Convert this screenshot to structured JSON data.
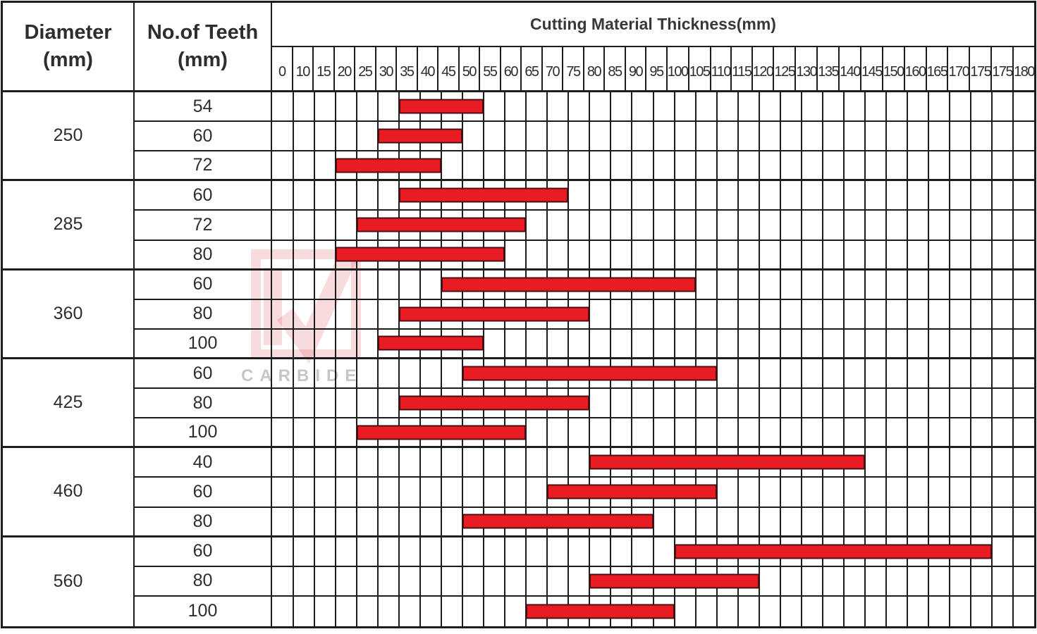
{
  "header": {
    "diameter_title": "Diameter",
    "diameter_unit": "(mm)",
    "teeth_title": "No.of Teeth",
    "teeth_unit": "(mm)",
    "chart_title": "Cutting Material Thickness(mm)",
    "ticks": [
      "0",
      "10",
      "15",
      "20",
      "25",
      "30",
      "35",
      "40",
      "45",
      "50",
      "55",
      "60",
      "65",
      "70",
      "75",
      "80",
      "85",
      "90",
      "95",
      "100",
      "105",
      "110",
      "115",
      "120",
      "125",
      "130",
      "135",
      "140",
      "145",
      "150",
      "160",
      "165",
      "170",
      "175",
      "175",
      "180"
    ]
  },
  "table": {
    "num_grid_columns": 36,
    "groups": [
      {
        "diameter": "250",
        "rows": [
          {
            "teeth": "54",
            "cols": [
              6,
              10
            ],
            "range_mm": [
              35,
              55
            ]
          },
          {
            "teeth": "60",
            "cols": [
              5,
              9
            ],
            "range_mm": [
              30,
              50
            ]
          },
          {
            "teeth": "72",
            "cols": [
              3,
              8
            ],
            "range_mm": [
              20,
              45
            ]
          }
        ]
      },
      {
        "diameter": "285",
        "rows": [
          {
            "teeth": "60",
            "cols": [
              6,
              14
            ],
            "range_mm": [
              35,
              75
            ]
          },
          {
            "teeth": "72",
            "cols": [
              4,
              12
            ],
            "range_mm": [
              25,
              65
            ]
          },
          {
            "teeth": "80",
            "cols": [
              3,
              11
            ],
            "range_mm": [
              20,
              60
            ]
          }
        ]
      },
      {
        "diameter": "360",
        "rows": [
          {
            "teeth": "60",
            "cols": [
              8,
              20
            ],
            "range_mm": [
              45,
              105
            ]
          },
          {
            "teeth": "80",
            "cols": [
              6,
              15
            ],
            "range_mm": [
              35,
              80
            ]
          },
          {
            "teeth": "100",
            "cols": [
              5,
              10
            ],
            "range_mm": [
              30,
              55
            ]
          }
        ]
      },
      {
        "diameter": "425",
        "rows": [
          {
            "teeth": "60",
            "cols": [
              9,
              21
            ],
            "range_mm": [
              50,
              110
            ]
          },
          {
            "teeth": "80",
            "cols": [
              6,
              15
            ],
            "range_mm": [
              35,
              80
            ]
          },
          {
            "teeth": "100",
            "cols": [
              4,
              12
            ],
            "range_mm": [
              25,
              65
            ]
          }
        ]
      },
      {
        "diameter": "460",
        "rows": [
          {
            "teeth": "40",
            "cols": [
              15,
              28
            ],
            "range_mm": [
              80,
              145
            ]
          },
          {
            "teeth": "60",
            "cols": [
              13,
              21
            ],
            "range_mm": [
              70,
              110
            ]
          },
          {
            "teeth": "80",
            "cols": [
              9,
              18
            ],
            "range_mm": [
              50,
              95
            ]
          }
        ]
      },
      {
        "diameter": "560",
        "rows": [
          {
            "teeth": "60",
            "cols": [
              19,
              34
            ],
            "range_mm": [
              100,
              175
            ]
          },
          {
            "teeth": "80",
            "cols": [
              15,
              23
            ],
            "range_mm": [
              80,
              120
            ]
          },
          {
            "teeth": "100",
            "cols": [
              12,
              19
            ],
            "range_mm": [
              65,
              100
            ]
          }
        ]
      }
    ]
  },
  "watermark": {
    "text": "CARBIDE"
  },
  "colors": {
    "bar_fill": "#ea1c23",
    "bar_border": "#4d0e11",
    "grid_line": "#1d1d1d",
    "text": "#2d2d2d",
    "watermark_pink": "rgba(214,55,65,0.18)",
    "watermark_gray": "#c7c7c7"
  },
  "chart_data": {
    "type": "bar",
    "subtype": "horizontal-range",
    "title": "Cutting Material Thickness(mm)",
    "xlabel": "Cutting Material Thickness(mm)",
    "x_tick_labels": [
      0,
      10,
      15,
      20,
      25,
      30,
      35,
      40,
      45,
      50,
      55,
      60,
      65,
      70,
      75,
      80,
      85,
      90,
      95,
      100,
      105,
      110,
      115,
      120,
      125,
      130,
      135,
      140,
      145,
      150,
      160,
      165,
      170,
      175,
      175,
      180
    ],
    "grid": true,
    "legend_position": "none",
    "series": [
      {
        "diameter_mm": 250,
        "teeth": 54,
        "thickness_range_mm": [
          35,
          55
        ]
      },
      {
        "diameter_mm": 250,
        "teeth": 60,
        "thickness_range_mm": [
          30,
          50
        ]
      },
      {
        "diameter_mm": 250,
        "teeth": 72,
        "thickness_range_mm": [
          20,
          45
        ]
      },
      {
        "diameter_mm": 285,
        "teeth": 60,
        "thickness_range_mm": [
          35,
          75
        ]
      },
      {
        "diameter_mm": 285,
        "teeth": 72,
        "thickness_range_mm": [
          25,
          65
        ]
      },
      {
        "diameter_mm": 285,
        "teeth": 80,
        "thickness_range_mm": [
          20,
          60
        ]
      },
      {
        "diameter_mm": 360,
        "teeth": 60,
        "thickness_range_mm": [
          45,
          105
        ]
      },
      {
        "diameter_mm": 360,
        "teeth": 80,
        "thickness_range_mm": [
          35,
          80
        ]
      },
      {
        "diameter_mm": 360,
        "teeth": 100,
        "thickness_range_mm": [
          30,
          55
        ]
      },
      {
        "diameter_mm": 425,
        "teeth": 60,
        "thickness_range_mm": [
          50,
          110
        ]
      },
      {
        "diameter_mm": 425,
        "teeth": 80,
        "thickness_range_mm": [
          35,
          80
        ]
      },
      {
        "diameter_mm": 425,
        "teeth": 100,
        "thickness_range_mm": [
          25,
          65
        ]
      },
      {
        "diameter_mm": 460,
        "teeth": 40,
        "thickness_range_mm": [
          80,
          145
        ]
      },
      {
        "diameter_mm": 460,
        "teeth": 60,
        "thickness_range_mm": [
          70,
          110
        ]
      },
      {
        "diameter_mm": 460,
        "teeth": 80,
        "thickness_range_mm": [
          50,
          95
        ]
      },
      {
        "diameter_mm": 560,
        "teeth": 60,
        "thickness_range_mm": [
          100,
          175
        ]
      },
      {
        "diameter_mm": 560,
        "teeth": 80,
        "thickness_range_mm": [
          80,
          120
        ]
      },
      {
        "diameter_mm": 560,
        "teeth": 100,
        "thickness_range_mm": [
          65,
          100
        ]
      }
    ]
  }
}
